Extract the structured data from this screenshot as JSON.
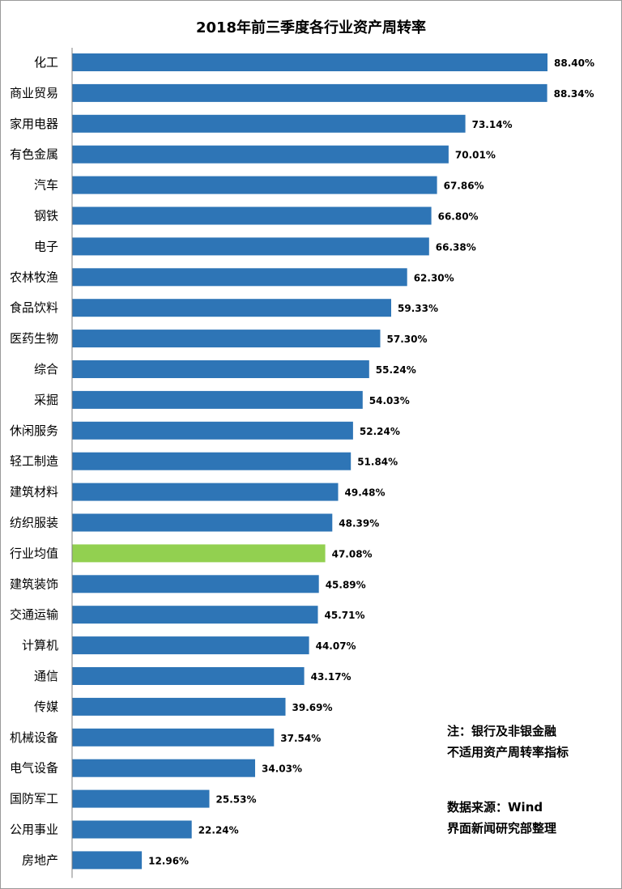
{
  "chart_data": {
    "type": "bar",
    "orientation": "horizontal",
    "title": "2018年前三季度各行业资产周转率",
    "categories": [
      "化工",
      "商业贸易",
      "家用电器",
      "有色金属",
      "汽车",
      "钢铁",
      "电子",
      "农林牧渔",
      "食品饮料",
      "医药生物",
      "综合",
      "采掘",
      "休闲服务",
      "轻工制造",
      "建筑材料",
      "纺织服装",
      "行业均值",
      "建筑装饰",
      "交通运输",
      "计算机",
      "通信",
      "传媒",
      "机械设备",
      "电气设备",
      "国防军工",
      "公用事业",
      "房地产"
    ],
    "values": [
      88.4,
      88.34,
      73.14,
      70.01,
      67.86,
      66.8,
      66.38,
      62.3,
      59.33,
      57.3,
      55.24,
      54.03,
      52.24,
      51.84,
      49.48,
      48.39,
      47.08,
      45.89,
      45.71,
      44.07,
      43.17,
      39.69,
      37.54,
      34.03,
      25.53,
      22.24,
      12.96
    ],
    "value_labels": [
      "88.40%",
      "88.34%",
      "73.14%",
      "70.01%",
      "67.86%",
      "66.80%",
      "66.38%",
      "62.30%",
      "59.33%",
      "57.30%",
      "55.24%",
      "54.03%",
      "52.24%",
      "51.84%",
      "49.48%",
      "48.39%",
      "47.08%",
      "45.89%",
      "45.71%",
      "44.07%",
      "43.17%",
      "39.69%",
      "37.54%",
      "34.03%",
      "25.53%",
      "22.24%",
      "12.96%"
    ],
    "highlight_category": "行业均值",
    "colors": {
      "bar": "#2e75b6",
      "highlight": "#92d050",
      "axis": "#808080"
    },
    "xlim": [
      0,
      100
    ],
    "grid": false,
    "legend": "none"
  },
  "notes": {
    "note_line1": "注：银行及非银金融",
    "note_line2": "不适用资产周转率指标",
    "source_line1": "数据来源：Wind",
    "source_line2": "界面新闻研究部整理"
  }
}
